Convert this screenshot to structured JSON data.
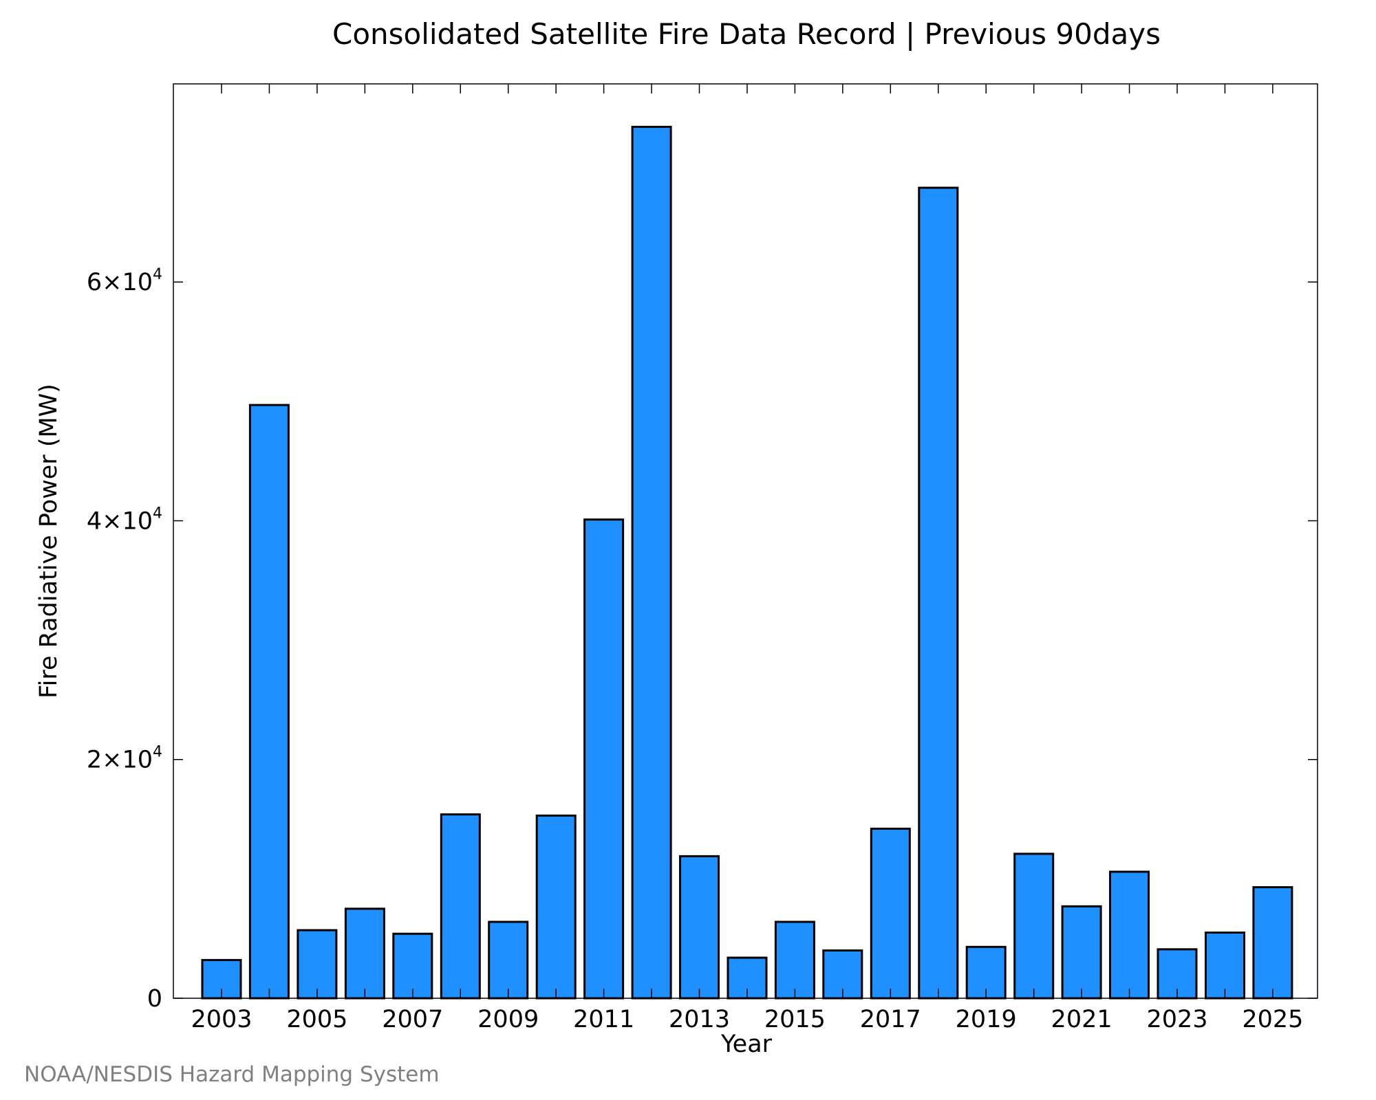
{
  "chart_data": {
    "type": "bar",
    "title": "Consolidated Satellite Fire Data Record | Previous 90days",
    "xlabel": "Year",
    "ylabel": "Fire Radiative Power (MW)",
    "categories": [
      "2003",
      "2004",
      "2005",
      "2006",
      "2007",
      "2008",
      "2009",
      "2010",
      "2011",
      "2012",
      "2013",
      "2014",
      "2015",
      "2016",
      "2017",
      "2018",
      "2019",
      "2020",
      "2021",
      "2022",
      "2023",
      "2024",
      "2025"
    ],
    "x_tick_labels": [
      "2003",
      "2005",
      "2007",
      "2009",
      "2011",
      "2013",
      "2015",
      "2017",
      "2019",
      "2021",
      "2023",
      "2025"
    ],
    "y_ticks": [
      {
        "value": 0,
        "mantissa": "0",
        "exponent": ""
      },
      {
        "value": 20000,
        "mantissa": "2×10",
        "exponent": "4"
      },
      {
        "value": 40000,
        "mantissa": "4×10",
        "exponent": "4"
      },
      {
        "value": 60000,
        "mantissa": "6×10",
        "exponent": "4"
      }
    ],
    "values": [
      3200,
      49700,
      5700,
      7500,
      5400,
      15400,
      6400,
      15300,
      40100,
      73000,
      11900,
      3400,
      6400,
      4000,
      14200,
      67900,
      4300,
      12100,
      7700,
      10600,
      4100,
      5500,
      9300
    ],
    "ylim": [
      0,
      76600
    ],
    "bar_color": "#1e90ff",
    "grid": false,
    "legend": "none"
  },
  "credit": "NOAA/NESDIS Hazard Mapping System"
}
